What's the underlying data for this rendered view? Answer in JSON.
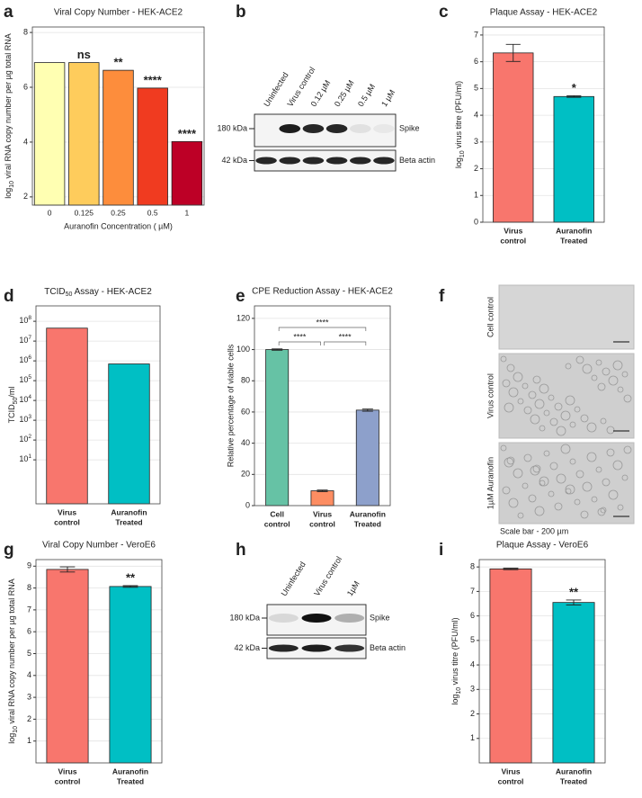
{
  "panel_letters": [
    "a",
    "b",
    "c",
    "d",
    "e",
    "f",
    "g",
    "h",
    "i"
  ],
  "chart_data": [
    {
      "type": "bar",
      "title": "Viral Copy Number - HEK-ACE2",
      "x_label": "Auranofin Concentration ( µM)",
      "y_label": [
        "log",
        "10",
        " viral RNA copy number per  µg total RNA"
      ],
      "categories": [
        "0",
        "0.125",
        "0.25",
        "0.5",
        "1"
      ],
      "values": [
        6.9,
        6.9,
        6.62,
        5.97,
        4.02
      ],
      "colors": [
        "#ffffb2",
        "#fecc5c",
        "#fd8d3c",
        "#f03b20",
        "#bd0026"
      ],
      "significance": [
        null,
        "ns",
        "**",
        "****",
        "****"
      ],
      "ylim": [
        1.7,
        8.2
      ],
      "yticks": [
        2,
        4,
        6,
        8
      ],
      "grid": true
    },
    {
      "type": "bar",
      "title": "Plaque Assay - HEK-ACE2",
      "y_label": [
        "log",
        "10",
        " virus titre (PFU/ml)"
      ],
      "categories": [
        [
          "Virus",
          "control"
        ],
        [
          "Auranofin",
          "Treated"
        ]
      ],
      "values": [
        6.33,
        4.7
      ],
      "errors": [
        0.32,
        0.03
      ],
      "colors": [
        "#f8766d",
        "#00bfc4"
      ],
      "significance": [
        null,
        "*"
      ],
      "ylim": [
        0,
        7.3
      ],
      "yticks": [
        0,
        1,
        2,
        3,
        4,
        5,
        6,
        7
      ],
      "grid": true
    },
    {
      "type": "bar",
      "title": [
        "TCID",
        "50",
        " Assay - HEK-ACE2"
      ],
      "y_label": [
        "TCID",
        "50",
        "/ml"
      ],
      "categories": [
        [
          "Virus",
          "control"
        ],
        [
          "Auranofin",
          "Treated"
        ]
      ],
      "values": [
        45000000,
        700000
      ],
      "colors": [
        "#f8766d",
        "#00bfc4"
      ],
      "log_scale": true,
      "ylim": [
        0.06,
        600000000
      ],
      "yticks": [
        {
          "value": 10,
          "label": "10",
          "exponent": "1"
        },
        {
          "value": 100,
          "label": "10",
          "exponent": "2"
        },
        {
          "value": 1000,
          "label": "10",
          "exponent": "3"
        },
        {
          "value": 10000,
          "label": "10",
          "exponent": "4"
        },
        {
          "value": 100000,
          "label": "10",
          "exponent": "5"
        },
        {
          "value": 1000000,
          "label": "10",
          "exponent": "6"
        },
        {
          "value": 10000000,
          "label": "10",
          "exponent": "7"
        },
        {
          "value": 100000000,
          "label": "10",
          "exponent": "8"
        }
      ],
      "grid": true
    },
    {
      "type": "bar",
      "title": "CPE Reduction Assay - HEK-ACE2",
      "y_label": "Relative percentage of viable cells",
      "categories": [
        [
          "Cell",
          "control"
        ],
        [
          "Virus",
          "control"
        ],
        [
          "Auranofin",
          "Treated"
        ]
      ],
      "values": [
        100,
        9.5,
        61.2
      ],
      "errors": [
        0.4,
        0.5,
        0.7
      ],
      "colors": [
        "#66c2a5",
        "#fc8d62",
        "#8da0cb"
      ],
      "comparisons": [
        {
          "from": 0,
          "to": 1,
          "label": "****"
        },
        {
          "from": 1,
          "to": 2,
          "label": "****"
        },
        {
          "from": 0,
          "to": 2,
          "label": "****"
        }
      ],
      "ylim": [
        0,
        128
      ],
      "yticks": [
        0,
        20,
        40,
        60,
        80,
        100,
        120
      ],
      "grid": true
    },
    {
      "type": "bar",
      "title": "Viral Copy Number - VeroE6",
      "y_label": [
        "log",
        "10",
        " viral RNA copy number per  µg total RNA"
      ],
      "categories": [
        [
          "Virus",
          "control"
        ],
        [
          "Auranofin",
          "Treated"
        ]
      ],
      "values": [
        8.85,
        8.07
      ],
      "errors": [
        0.12,
        0.04
      ],
      "colors": [
        "#f8766d",
        "#00bfc4"
      ],
      "significance": [
        null,
        "**"
      ],
      "ylim": [
        0,
        9.3
      ],
      "yticks": [
        1,
        2,
        3,
        4,
        5,
        6,
        7,
        8,
        9
      ],
      "grid": true
    },
    {
      "type": "bar",
      "title": "Plaque Assay - VeroE6",
      "y_label": [
        "log",
        "10",
        " virus titre (PFU/ml)"
      ],
      "categories": [
        [
          "Virus",
          "control"
        ],
        [
          "Auranofin",
          "Treated"
        ]
      ],
      "values": [
        7.92,
        6.55
      ],
      "errors": [
        0.03,
        0.1
      ],
      "colors": [
        "#f8766d",
        "#00bfc4"
      ],
      "significance": [
        null,
        "**"
      ],
      "ylim": [
        0,
        8.3
      ],
      "yticks": [
        1,
        2,
        3,
        4,
        5,
        6,
        7,
        8
      ],
      "grid": true
    }
  ],
  "blots": [
    {
      "lanes": [
        "Uninfected",
        "Virus control",
        "0.12 µM",
        "0.25 µM",
        "0.5 µM",
        "1 µM"
      ],
      "markers": [
        "180 kDa",
        "42 kDa"
      ],
      "proteins": [
        "Spike",
        "Beta actin"
      ]
    },
    {
      "lanes": [
        "Uninfected",
        "Virus control",
        "1µM"
      ],
      "markers": [
        "180 kDa",
        "42 kDa"
      ],
      "proteins": [
        "Spike",
        "Beta actin"
      ]
    }
  ],
  "micrographs": {
    "labels": [
      "Cell control",
      "Virus control",
      "1µM Auranofin"
    ],
    "scale_bar": "Scale bar - 200 µm"
  }
}
